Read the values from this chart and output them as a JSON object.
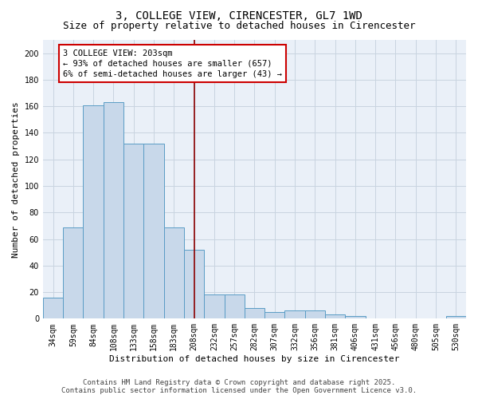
{
  "title_line1": "3, COLLEGE VIEW, CIRENCESTER, GL7 1WD",
  "title_line2": "Size of property relative to detached houses in Cirencester",
  "xlabel": "Distribution of detached houses by size in Cirencester",
  "ylabel": "Number of detached properties",
  "categories": [
    "34sqm",
    "59sqm",
    "84sqm",
    "108sqm",
    "133sqm",
    "158sqm",
    "183sqm",
    "208sqm",
    "232sqm",
    "257sqm",
    "282sqm",
    "307sqm",
    "332sqm",
    "356sqm",
    "381sqm",
    "406sqm",
    "431sqm",
    "456sqm",
    "480sqm",
    "505sqm",
    "530sqm"
  ],
  "values": [
    16,
    69,
    161,
    163,
    132,
    132,
    69,
    52,
    18,
    18,
    8,
    5,
    6,
    6,
    3,
    2,
    0,
    0,
    0,
    0,
    2
  ],
  "bar_color": "#c8d8ea",
  "bar_edge_color": "#5a9cc5",
  "vline_index": 7,
  "vline_color": "#8B0000",
  "annotation_text": "3 COLLEGE VIEW: 203sqm\n← 93% of detached houses are smaller (657)\n6% of semi-detached houses are larger (43) →",
  "annotation_box_color": "white",
  "annotation_box_edge": "#cc0000",
  "ylim": [
    0,
    210
  ],
  "yticks": [
    0,
    20,
    40,
    60,
    80,
    100,
    120,
    140,
    160,
    180,
    200
  ],
  "grid_color": "#c8d4e0",
  "bg_color": "#eaf0f8",
  "footer_line1": "Contains HM Land Registry data © Crown copyright and database right 2025.",
  "footer_line2": "Contains public sector information licensed under the Open Government Licence v3.0.",
  "title_fontsize": 10,
  "subtitle_fontsize": 9,
  "annotation_fontsize": 7.5,
  "axis_label_fontsize": 8,
  "tick_fontsize": 7
}
